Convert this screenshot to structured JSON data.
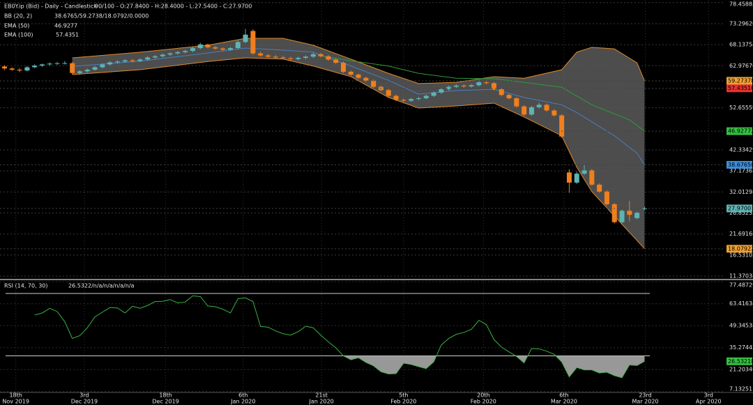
{
  "chart_data": [
    {
      "type": "candlestick",
      "title": "EB0Y.ip (Bid) - Daily - Candlestick",
      "readout": "90/100 - O:27.8400 - H:28.4000 - L:27.5400 - C:27.9700",
      "indicators": [
        {
          "name": "BB (20, 2)",
          "value": "38.6765/59.2738/18.0792/0.0000"
        },
        {
          "name": "EMA (50)",
          "value": 46.9277
        },
        {
          "name": "EMA (100)",
          "value": 57.4351
        }
      ],
      "up_color": "#5fb3b3",
      "down_color": "#f07f1e",
      "open": [
        62.8,
        62.3,
        62.0,
        61.8,
        62.6,
        63.0,
        63.3,
        63.5,
        63.6,
        63.6,
        61.2,
        61.6,
        62.0,
        62.6,
        63.3,
        63.8,
        64.0,
        64.3,
        64.1,
        64.5,
        65.0,
        65.3,
        65.7,
        66.0,
        66.3,
        66.6,
        67.3,
        68.2,
        67.5,
        67.2,
        66.9,
        67.3,
        68.8,
        71.5,
        66.0,
        65.5,
        65.2,
        65.0,
        64.8,
        64.6,
        64.9,
        65.2,
        65.8,
        65.3,
        64.5,
        63.7,
        61.5,
        60.8,
        60.0,
        59.3,
        57.8,
        57.0,
        55.6,
        54.6,
        54.4,
        54.8,
        55.0,
        55.6,
        56.4,
        57.2,
        57.8,
        58.1,
        57.9,
        58.2,
        58.9,
        58.7,
        57.2,
        55.8,
        55.0,
        53.0,
        51.0,
        52.8,
        53.4,
        52.0,
        50.8,
        36.8,
        34.3,
        36.5,
        37.3,
        33.8,
        32.1,
        29.0,
        24.6,
        27.4,
        25.6,
        27.84
      ],
      "high": [
        63.1,
        62.6,
        62.4,
        62.9,
        63.3,
        63.5,
        63.8,
        63.9,
        64.1,
        63.9,
        61.9,
        62.3,
        62.9,
        63.6,
        64.1,
        64.3,
        64.6,
        64.6,
        64.8,
        65.3,
        65.6,
        66.0,
        66.3,
        66.6,
        66.9,
        67.6,
        68.6,
        68.4,
        67.8,
        67.5,
        67.6,
        69.2,
        72.0,
        71.9,
        66.4,
        65.9,
        65.6,
        65.4,
        65.2,
        65.2,
        65.5,
        66.2,
        66.1,
        65.6,
        64.8,
        64.0,
        61.8,
        61.1,
        60.3,
        59.6,
        58.1,
        57.3,
        55.9,
        54.9,
        55.1,
        55.3,
        55.9,
        56.7,
        57.5,
        58.1,
        58.4,
        58.4,
        58.5,
        59.4,
        59.2,
        59.0,
        57.5,
        56.1,
        55.3,
        53.3,
        53.1,
        53.9,
        53.7,
        52.3,
        51.1,
        37.6,
        37.0,
        38.6,
        37.6,
        34.1,
        32.4,
        29.3,
        27.7,
        29.8,
        27.2,
        28.4
      ],
      "low": [
        61.9,
        61.7,
        61.4,
        61.6,
        62.4,
        62.7,
        63.0,
        63.2,
        63.3,
        60.9,
        60.8,
        61.3,
        61.8,
        62.3,
        63.0,
        63.5,
        63.7,
        63.8,
        63.9,
        64.2,
        64.7,
        65.0,
        65.4,
        65.7,
        66.0,
        66.3,
        67.0,
        67.2,
        66.9,
        66.6,
        66.6,
        67.0,
        68.5,
        65.7,
        65.2,
        64.9,
        64.7,
        64.5,
        64.3,
        64.3,
        64.6,
        64.9,
        65.0,
        64.2,
        63.4,
        61.2,
        60.5,
        59.7,
        59.0,
        57.5,
        56.7,
        55.3,
        54.3,
        54.1,
        54.1,
        54.5,
        54.7,
        55.3,
        56.1,
        56.9,
        57.5,
        57.6,
        57.6,
        57.9,
        58.4,
        56.9,
        55.5,
        54.7,
        52.7,
        50.7,
        50.7,
        52.5,
        51.7,
        50.5,
        45.3,
        31.8,
        34.0,
        36.2,
        33.5,
        31.8,
        28.7,
        24.3,
        24.3,
        24.8,
        25.3,
        27.54
      ],
      "close": [
        62.3,
        62.0,
        61.8,
        62.6,
        63.0,
        63.3,
        63.5,
        63.6,
        63.6,
        61.2,
        61.6,
        62.0,
        62.6,
        63.3,
        63.8,
        64.0,
        64.3,
        64.1,
        64.5,
        65.0,
        65.3,
        65.7,
        66.0,
        66.3,
        66.6,
        67.3,
        68.2,
        67.5,
        67.2,
        66.9,
        67.3,
        68.8,
        70.6,
        66.0,
        65.5,
        65.2,
        65.0,
        64.8,
        64.6,
        64.9,
        65.2,
        65.8,
        65.3,
        64.5,
        63.7,
        61.5,
        60.8,
        60.0,
        59.3,
        57.8,
        57.0,
        55.6,
        54.6,
        54.4,
        54.8,
        55.0,
        55.6,
        56.4,
        57.2,
        57.8,
        58.1,
        57.9,
        58.2,
        58.9,
        58.7,
        57.2,
        55.8,
        55.0,
        53.0,
        51.0,
        52.8,
        53.4,
        52.0,
        50.8,
        45.6,
        34.3,
        36.5,
        37.3,
        33.8,
        32.1,
        29.0,
        24.6,
        27.4,
        26.4,
        26.9,
        27.97
      ],
      "bands": {
        "x": [
          9,
          18,
          27,
          32,
          37,
          41,
          46,
          51,
          55,
          60,
          65,
          69,
          74,
          76,
          78,
          81,
          84,
          85
        ],
        "upper": [
          64.9,
          66.3,
          68.0,
          69.7,
          69.7,
          68.0,
          64.6,
          61.1,
          58.6,
          58.9,
          60.3,
          59.9,
          62.0,
          66.3,
          67.5,
          67.1,
          63.7,
          59.27378
        ],
        "middle": [
          62.8,
          64.1,
          66.1,
          67.3,
          66.8,
          66.3,
          62.9,
          59.4,
          56.0,
          56.9,
          57.2,
          55.2,
          53.4,
          51.5,
          49.2,
          45.8,
          41.5,
          38.6765
        ],
        "lower": [
          60.8,
          62.0,
          64.0,
          64.9,
          64.6,
          62.9,
          60.3,
          55.2,
          52.6,
          53.1,
          53.8,
          50.4,
          45.8,
          38.1,
          32.1,
          26.1,
          20.1,
          18.0792
        ],
        "band_color": "#e08a2c",
        "middle_color": "#4a7fc0"
      },
      "ema50": {
        "x": [
          42,
          46,
          51,
          55,
          60,
          65,
          69,
          74,
          78,
          83,
          85
        ],
        "values": [
          65.4,
          64.2,
          62.9,
          61.1,
          59.9,
          59.8,
          58.9,
          57.7,
          53.4,
          49.7,
          46.9277
        ],
        "color": "#2e9b3a"
      },
      "price_labels": [
        {
          "value": 59.27378,
          "label": "59.27378",
          "color": "#f0a030"
        },
        {
          "value": 57.4351,
          "label": "57.43510",
          "color": "#e83030"
        },
        {
          "value": 46.92772,
          "label": "46.92772",
          "color": "#34c040"
        },
        {
          "value": 38.6765,
          "label": "38.67650",
          "color": "#3a8fe0"
        },
        {
          "value": 27.97,
          "label": "27.9700",
          "color": "#5fb3b3"
        },
        {
          "value": 18.07922,
          "label": "18.07922",
          "color": "#f0a030"
        }
      ],
      "xlim": [
        -0.6,
        95.7
      ],
      "xticks": [
        {
          "value": 1.5,
          "label": [
            "18th",
            "Nov 2019"
          ]
        },
        {
          "value": 10.6,
          "label": [
            "3rd",
            "Dec 2019"
          ]
        },
        {
          "value": 21.4,
          "label": [
            "18th",
            "Dec 2019"
          ]
        },
        {
          "value": 31.7,
          "label": [
            "6th",
            "Jan 2020"
          ]
        },
        {
          "value": 42.1,
          "label": [
            "21st",
            "Jan 2020"
          ]
        },
        {
          "value": 53,
          "label": [
            "5th",
            "Feb 2020"
          ]
        },
        {
          "value": 63.6,
          "label": [
            "20th",
            "Feb 2020"
          ]
        },
        {
          "value": 74.3,
          "label": [
            "6th",
            "Mar 2020"
          ]
        },
        {
          "value": 85.1,
          "label": [
            "23rd",
            "Mar 2020"
          ]
        },
        {
          "value": 93.5,
          "label": [
            "3rd",
            "Apr 2020"
          ]
        }
      ],
      "ylim": [
        10.7,
        79.1
      ],
      "yticks": [
        78.45885,
        {
          "value": 73.2962,
          "label": "73.29620"
        },
        68.13754,
        {
          "value": 62.9767,
          "label": "62.97670"
        },
        52.65559,
        42.33429,
        37.17363,
        32.01298,
        26.85233,
        21.69168,
        16.53103,
        11.37038
      ],
      "grid": true
    },
    {
      "type": "line",
      "title": "RSI (14, 70, 30)",
      "readout": "26.5322/n/a/n/a/n/a/n/a",
      "upper_level": 70,
      "lower_level": 30,
      "color": "#3cb043",
      "values": [
        null,
        null,
        null,
        null,
        56.2,
        57.5,
        60.5,
        58.4,
        51.9,
        41.2,
        43.0,
        48.0,
        55.0,
        58.0,
        61.0,
        60.7,
        57.5,
        61.8,
        60.5,
        62.3,
        64.8,
        65.0,
        66.1,
        64.0,
        64.5,
        68.5,
        68.0,
        62.0,
        61.5,
        59.9,
        57.5,
        66.6,
        67.2,
        64.8,
        48.9,
        48.4,
        46.0,
        44.2,
        43.3,
        45.5,
        49.0,
        48.0,
        43.3,
        39.0,
        35.2,
        30.0,
        27.5,
        28.8,
        25.8,
        23.6,
        19.8,
        18.4,
        18.6,
        25.3,
        24.5,
        23.1,
        21.8,
        26.1,
        36.9,
        41.2,
        43.8,
        45.0,
        47.0,
        52.8,
        50.0,
        40.5,
        35.6,
        32.6,
        29.6,
        25.5,
        34.7,
        34.5,
        33.0,
        31.0,
        26.1,
        16.5,
        22.5,
        21.0,
        21.0,
        19.0,
        19.5,
        17.3,
        16.0,
        24.2,
        23.8,
        26.5322
      ],
      "current": {
        "value": 26.53218,
        "label": "26.53218",
        "color": "#34c040"
      },
      "ylim": [
        7.0,
        77.6
      ],
      "yticks": [
        77.48729,
        63.41634,
        49.34538,
        35.27442,
        21.20346,
        7.13251
      ]
    }
  ]
}
